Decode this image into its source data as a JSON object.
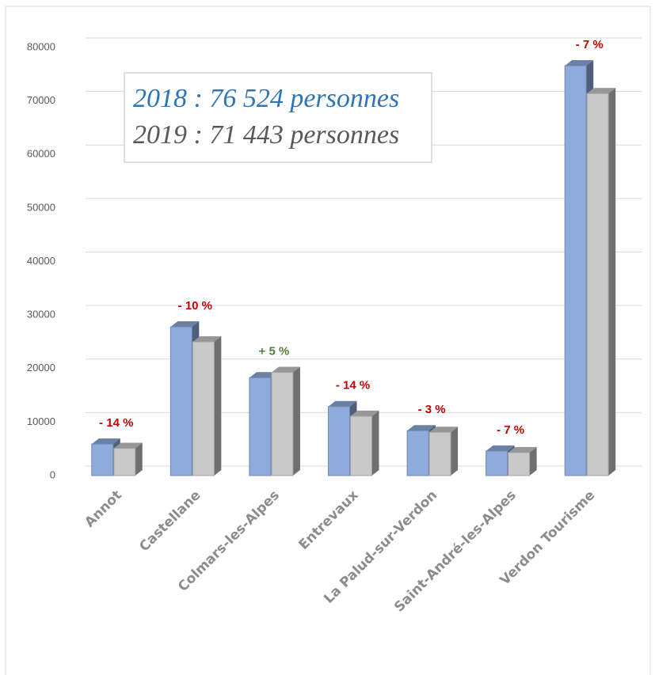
{
  "chart_data": {
    "type": "bar3d",
    "categories": [
      "Annot",
      "Castellane",
      "Colmars-les-Alpes",
      "Entrevaux",
      "La Palud-sur-Verdon",
      "Saint-André-les-Alpes",
      "Verdon Tourisme"
    ],
    "series": [
      {
        "color": "#8faadc",
        "values": [
          5900,
          27800,
          18300,
          12900,
          8400,
          4600,
          76600
        ]
      },
      {
        "color": "#c9c9c9",
        "values": [
          5100,
          25000,
          19300,
          11100,
          8100,
          4300,
          71400
        ]
      }
    ],
    "change_labels": [
      "- 14 %",
      "- 10 %",
      "+ 5 %",
      "- 14 %",
      "- 3 %",
      "- 7 %",
      "- 7 %"
    ],
    "change_colors": [
      "#c00000",
      "#c00000",
      "#548235",
      "#c00000",
      "#c00000",
      "#c00000",
      "#c00000"
    ],
    "annotations": [
      {
        "text": "2018 : 76 524 personnes",
        "color": "#2e75b6"
      },
      {
        "text": "2019 :  71 443 personnes",
        "color": "#595959"
      }
    ],
    "ylim": [
      0,
      80000
    ],
    "yticks": [
      0,
      10000,
      20000,
      30000,
      40000,
      50000,
      60000,
      70000,
      80000
    ],
    "grid": true
  }
}
